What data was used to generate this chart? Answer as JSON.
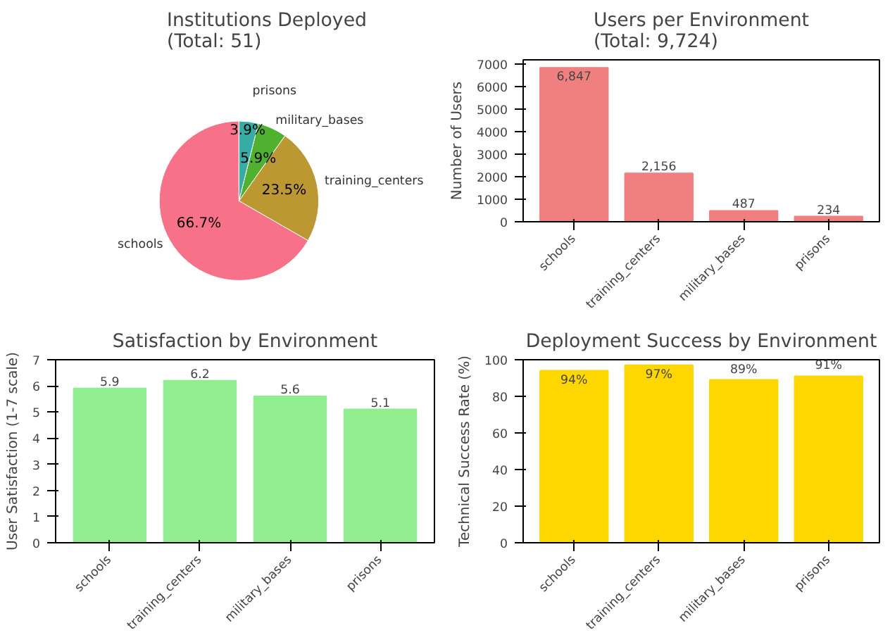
{
  "chart_data": [
    {
      "type": "pie",
      "title": "Institutions Deployed\n(Total: 51)",
      "categories": [
        "schools",
        "training_centers",
        "military_bases",
        "prisons"
      ],
      "values": [
        66.7,
        23.5,
        5.9,
        3.9
      ],
      "colors": [
        "#f77189",
        "#bb9832",
        "#50b131",
        "#36ada4"
      ],
      "value_labels": [
        "66.7%",
        "23.5%",
        "5.9%",
        "3.9%"
      ]
    },
    {
      "type": "bar",
      "title": "Users per Environment\n(Total: 9,724)",
      "ylabel": "Number of Users",
      "categories": [
        "schools",
        "training_centers",
        "military_bases",
        "prisons"
      ],
      "values": [
        6847,
        2156,
        487,
        234
      ],
      "color": "#f08080",
      "value_labels": [
        "6,847",
        "2,156",
        "487",
        "234"
      ],
      "ylim": [
        0,
        7200
      ],
      "yticks": [
        0,
        1000,
        2000,
        3000,
        4000,
        5000,
        6000,
        7000
      ]
    },
    {
      "type": "bar",
      "title": "Satisfaction by Environment",
      "ylabel": "User Satisfaction (1-7 scale)",
      "categories": [
        "schools",
        "training_centers",
        "military_bases",
        "prisons"
      ],
      "values": [
        5.9,
        6.2,
        5.6,
        5.1
      ],
      "color": "#90ee90",
      "data_labels": true,
      "ylim": [
        0,
        7
      ],
      "yticks": [
        0,
        1,
        2,
        3,
        4,
        5,
        6,
        7
      ]
    },
    {
      "type": "bar",
      "title": "Deployment Success by Environment",
      "ylabel": "Technical Success Rate (%)",
      "categories": [
        "schools",
        "training_centers",
        "military_bases",
        "prisons"
      ],
      "values": [
        94,
        97,
        89,
        91
      ],
      "color": "#ffd700",
      "value_labels": [
        "94%",
        "97%",
        "89%",
        "91%"
      ],
      "ylim": [
        0,
        100
      ],
      "yticks": [
        0,
        20,
        40,
        60,
        80,
        100
      ]
    }
  ]
}
